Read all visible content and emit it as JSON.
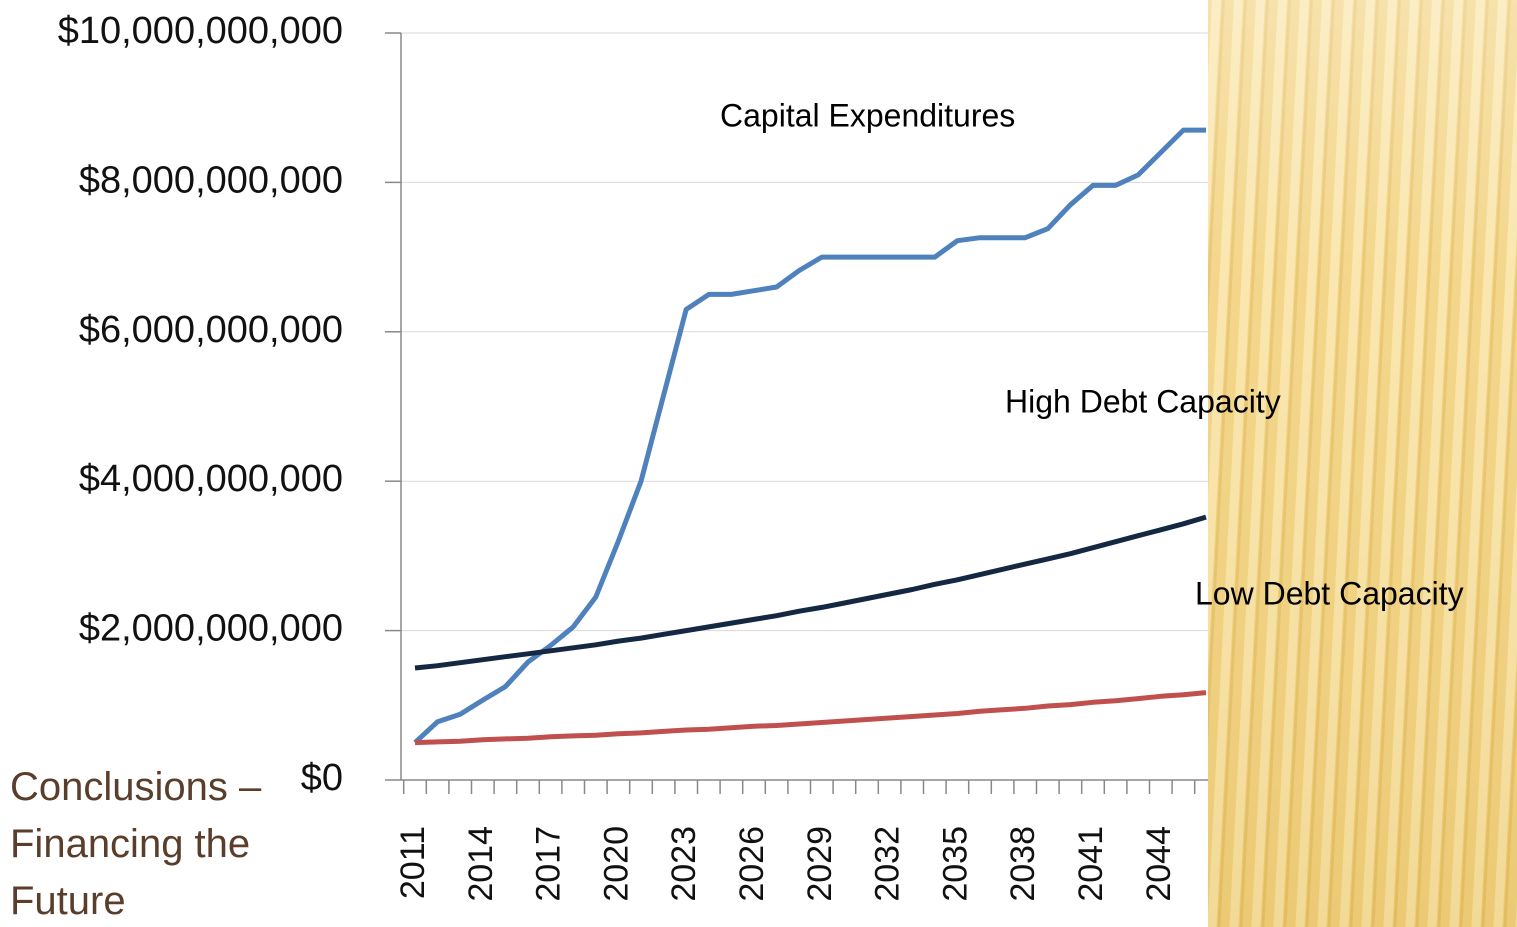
{
  "slide": {
    "title_lines": [
      "Conclusions –",
      "Financing the",
      "Future"
    ]
  },
  "chart_data": {
    "type": "line",
    "categories": [
      "2011",
      null,
      null,
      "2014",
      null,
      null,
      "2017",
      null,
      null,
      "2020",
      null,
      null,
      "2023",
      null,
      null,
      "2026",
      null,
      null,
      "2029",
      null,
      null,
      "2032",
      null,
      null,
      "2035",
      null,
      null,
      "2038",
      null,
      null,
      "2041",
      null,
      null,
      "2044",
      null,
      null
    ],
    "series": [
      {
        "name": "Capital Expenditures",
        "color": "#4f81bd",
        "values": [
          500000000,
          780000000,
          880000000,
          1070000000,
          1250000000,
          1580000000,
          1800000000,
          2050000000,
          2450000000,
          3200000000,
          4000000000,
          5150000000,
          6300000000,
          6500000000,
          6500000000,
          6550000000,
          6600000000,
          6820000000,
          7000000000,
          7000000000,
          7000000000,
          7000000000,
          7000000000,
          7000000000,
          7220000000,
          7260000000,
          7260000000,
          7260000000,
          7380000000,
          7700000000,
          7960000000,
          7960000000,
          8100000000,
          8400000000,
          8700000000,
          8700000000
        ]
      },
      {
        "name": "High Debt Capacity",
        "color": "#142842",
        "values": [
          1500000000,
          1530000000,
          1570000000,
          1610000000,
          1650000000,
          1690000000,
          1730000000,
          1770000000,
          1810000000,
          1860000000,
          1900000000,
          1950000000,
          2000000000,
          2050000000,
          2100000000,
          2150000000,
          2200000000,
          2260000000,
          2310000000,
          2370000000,
          2430000000,
          2490000000,
          2550000000,
          2620000000,
          2680000000,
          2750000000,
          2820000000,
          2890000000,
          2960000000,
          3030000000,
          3110000000,
          3190000000,
          3270000000,
          3350000000,
          3430000000,
          3520000000
        ]
      },
      {
        "name": "Low Debt Capacity",
        "color": "#c0504d",
        "values": [
          500000000,
          510000000,
          520000000,
          540000000,
          550000000,
          560000000,
          580000000,
          590000000,
          600000000,
          620000000,
          630000000,
          650000000,
          670000000,
          680000000,
          700000000,
          720000000,
          730000000,
          750000000,
          770000000,
          790000000,
          810000000,
          830000000,
          850000000,
          870000000,
          890000000,
          920000000,
          940000000,
          960000000,
          990000000,
          1010000000,
          1040000000,
          1060000000,
          1090000000,
          1120000000,
          1140000000,
          1170000000
        ]
      }
    ],
    "ylim": [
      0,
      10000000000
    ],
    "yticks": [
      {
        "value": 0,
        "label": "$0"
      },
      {
        "value": 2000000000,
        "label": "$2,000,000,000"
      },
      {
        "value": 4000000000,
        "label": "$4,000,000,000"
      },
      {
        "value": 6000000000,
        "label": "$6,000,000,000"
      },
      {
        "value": 8000000000,
        "label": "$8,000,000,000"
      },
      {
        "value": 10000000000,
        "label": "$10,000,000,000"
      }
    ],
    "grid": true
  }
}
